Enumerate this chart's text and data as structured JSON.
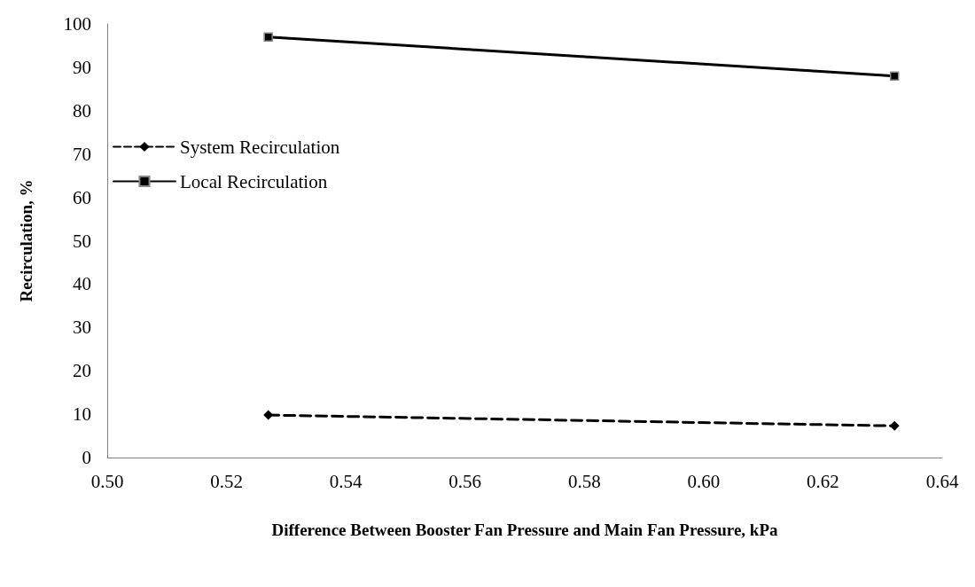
{
  "chart_data": {
    "type": "line",
    "xlabel": "Difference Between Booster Fan Pressure and Main Fan Pressure, kPa",
    "ylabel": "Recirculation, %",
    "xlim": [
      0.5,
      0.64
    ],
    "xticks": [
      {
        "value": 0.5,
        "label": "0.50"
      },
      {
        "value": 0.52,
        "label": "0.52"
      },
      {
        "value": 0.54,
        "label": "0.54"
      },
      {
        "value": 0.56,
        "label": "0.56"
      },
      {
        "value": 0.58,
        "label": "0.58"
      },
      {
        "value": 0.6,
        "label": "0.60"
      },
      {
        "value": 0.62,
        "label": "0.62"
      },
      {
        "value": 0.64,
        "label": "0.64"
      }
    ],
    "ylim": [
      0,
      100
    ],
    "yticks": [
      0,
      10,
      20,
      30,
      40,
      50,
      60,
      70,
      80,
      90,
      100
    ],
    "grid": false,
    "legend": "top left",
    "x": [
      0.527,
      0.632
    ],
    "series": [
      {
        "name": "System Recirculation",
        "color": "#000000",
        "marker": "diamond",
        "line_style": "dashed",
        "values": [
          9.8,
          7.3
        ]
      },
      {
        "name": "Local Recirculation",
        "color": "#000000",
        "marker": "square",
        "line_style": "solid",
        "values": [
          97,
          88
        ]
      }
    ]
  }
}
